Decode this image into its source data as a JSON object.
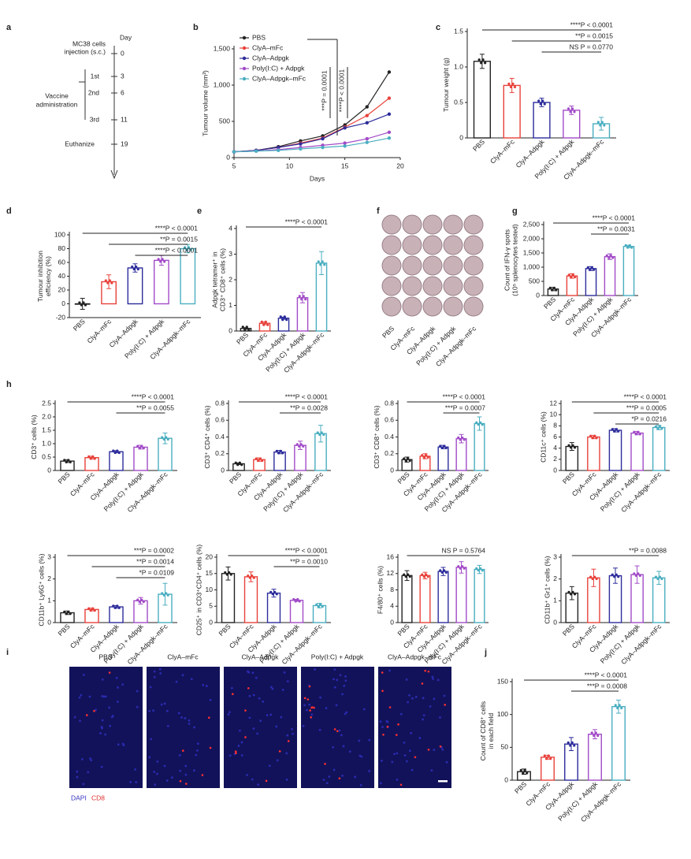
{
  "timeline": {
    "panel": "a",
    "day_label": "Day",
    "group_label": [
      "Vaccine",
      "administration"
    ],
    "events": [
      {
        "label": [
          "MC38 cells",
          "injection (s.c.)"
        ],
        "day": "0"
      },
      {
        "label": [
          "1st"
        ],
        "day": "3"
      },
      {
        "label": [
          "2nd"
        ],
        "day": "6"
      },
      {
        "label": [
          "3rd"
        ],
        "day": "11"
      },
      {
        "label": [
          "Euthanize"
        ],
        "day": "19"
      }
    ]
  },
  "wells": {
    "panel": "f",
    "categories": [
      "PBS",
      "ClyA–mFc",
      "ClyA–Adpgk",
      "Poly(I:C) + Adpgk",
      "ClyA–Adpgk–mFc"
    ]
  },
  "images": {
    "panel": "i",
    "titles": [
      "PBS",
      "ClyA–mFc",
      "ClyA–Adpgk",
      "Poly(I:C) + Adpgk",
      "ClyA–Adpgk–mFc"
    ],
    "stain_labels": [
      "DAPI",
      "CD8"
    ]
  },
  "chart_data": [
    {
      "type": "line",
      "panel": "b",
      "xlabel": "Days",
      "ylabel": [
        "Tumour volume (mm³)"
      ],
      "x": [
        5,
        7,
        9,
        11,
        13,
        15,
        17,
        19
      ],
      "xlim": [
        5,
        20
      ],
      "xticks": [
        5,
        10,
        15,
        20
      ],
      "ylim": [
        0,
        1500
      ],
      "yticks": [
        0,
        500,
        {
          "value": 1000,
          "label": "1,000"
        },
        {
          "value": 1500,
          "label": "1,500"
        }
      ],
      "annotations": [
        "***P = 0.0001",
        "****P < 0.0001"
      ],
      "series": [
        {
          "name": "PBS",
          "color": "#222222",
          "values": [
            80,
            100,
            150,
            230,
            300,
            450,
            700,
            1180
          ]
        },
        {
          "name": "ClyA–mFc",
          "color": "#e8413a",
          "values": [
            80,
            100,
            140,
            200,
            270,
            420,
            580,
            820
          ]
        },
        {
          "name": "ClyA–Adpgk",
          "color": "#2c2c9c",
          "values": [
            80,
            100,
            140,
            190,
            260,
            410,
            480,
            600
          ]
        },
        {
          "name": "Poly(I:C) + Adpgk",
          "color": "#a24bc8",
          "values": [
            80,
            90,
            110,
            140,
            170,
            200,
            260,
            350
          ]
        },
        {
          "name": "ClyA–Adpgk–mFc",
          "color": "#4aaec0",
          "values": [
            80,
            90,
            100,
            120,
            140,
            160,
            210,
            270
          ]
        }
      ]
    },
    {
      "type": "bar",
      "panel": "c",
      "ylabel": [
        "Tumour weight (g)"
      ],
      "categories": [
        "PBS",
        "ClyA–mFc",
        "ClyA–Adpgk",
        "Poly(I:C) + Adpgk",
        "ClyA–Adpgk–mFc"
      ],
      "values": [
        1.08,
        0.74,
        0.5,
        0.39,
        0.2
      ],
      "errors": [
        0.1,
        0.1,
        0.06,
        0.06,
        0.09
      ],
      "ylim": [
        0,
        1.5
      ],
      "yticks": [
        0,
        0.5,
        {
          "value": 1,
          "label": "1.0"
        },
        1.5
      ],
      "annotations": [
        "****P < 0.0001",
        "**P = 0.0015",
        "NS P = 0.0770"
      ]
    },
    {
      "type": "bar",
      "panel": "d",
      "ylabel": [
        "Tumour inhibition",
        "efficiency (%)"
      ],
      "categories": [
        "PBS",
        "ClyA–mFc",
        "ClyA–Adpgk",
        "Poly(I:C) + Adpgk",
        "ClyA–Adpgk–mFc"
      ],
      "values": [
        0,
        32,
        52,
        63,
        80
      ],
      "errors": [
        8,
        10,
        6,
        7,
        6
      ],
      "ylim": [
        -20,
        100
      ],
      "yticks": [
        -20,
        0,
        20,
        40,
        60,
        80,
        100
      ],
      "annotations": [
        "****P < 0.0001",
        "**P = 0.0015",
        "****P < 0.0001"
      ]
    },
    {
      "type": "bar",
      "panel": "e",
      "ylabel": [
        "Adpgk tetramer⁺ in",
        "CD3⁺ CD8⁺ cells (%)"
      ],
      "categories": [
        "PBS",
        "ClyA–mFc",
        "ClyA–Adpgk",
        "Poly(I:C) + Adpgk",
        "ClyA–Adpgk–mFc"
      ],
      "values": [
        0.1,
        0.3,
        0.5,
        1.3,
        2.65
      ],
      "errors": [
        0.03,
        0.05,
        0.04,
        0.2,
        0.45
      ],
      "ylim": [
        0,
        4
      ],
      "yticks": [
        0,
        1,
        2,
        3,
        4
      ],
      "annotations": [
        "****P < 0.0001"
      ]
    },
    {
      "type": "bar",
      "panel": "g",
      "ylabel": [
        "Count of IFN-γ spots",
        "(10⁵ splenocytes tested)"
      ],
      "categories": [
        "PBS",
        "ClyA–mFc",
        "ClyA–Adpgk",
        "Poly(I:C) + Adpgk",
        "ClyA–Adpgk–mFc"
      ],
      "values": [
        230,
        690,
        950,
        1370,
        1730
      ],
      "errors": [
        60,
        80,
        70,
        100,
        40
      ],
      "ylim": [
        0,
        2500
      ],
      "yticks": [
        0,
        500,
        {
          "value": 1000,
          "label": "1,000"
        },
        {
          "value": 1500,
          "label": "1,500"
        },
        {
          "value": 2000,
          "label": "2,000"
        },
        {
          "value": 2500,
          "label": "2,500"
        }
      ],
      "annotations": [
        "****P < 0.0001",
        "**P = 0.0031"
      ]
    },
    {
      "type": "bar",
      "panel": "h",
      "ylabel": [
        "CD3⁺ cells (%)"
      ],
      "categories": [
        "PBS",
        "ClyA–mFc",
        "ClyA–Adpgk",
        "Poly(I:C) + Adpgk",
        "ClyA–Adpgk–mFc"
      ],
      "values": [
        0.35,
        0.48,
        0.7,
        0.87,
        1.2
      ],
      "errors": [
        0.05,
        0.05,
        0.04,
        0.07,
        0.2
      ],
      "ylim": [
        0,
        2.5
      ],
      "yticks": [
        0,
        0.5,
        {
          "value": 1,
          "label": "1.0"
        },
        1.5,
        {
          "value": 2,
          "label": "2.0"
        },
        2.5
      ],
      "annotations": [
        "****P < 0.0001",
        "**P = 0.0055"
      ]
    },
    {
      "type": "bar",
      "ylabel": [
        "CD3⁺ CD4⁺ cells (%)"
      ],
      "categories": [
        "PBS",
        "ClyA–mFc",
        "ClyA–Adpgk",
        "Poly(I:C) + Adpgk",
        "ClyA–Adpgk–mFc"
      ],
      "values": [
        0.08,
        0.13,
        0.22,
        0.3,
        0.44
      ],
      "errors": [
        0.01,
        0.02,
        0.02,
        0.05,
        0.1
      ],
      "ylim": [
        0,
        0.8
      ],
      "yticks": [
        0,
        0.2,
        0.4,
        0.6,
        0.8
      ],
      "annotations": [
        "****P < 0.0001",
        "**P = 0.0028"
      ]
    },
    {
      "type": "bar",
      "ylabel": [
        "CD3⁺ CD8⁺ cells (%)"
      ],
      "categories": [
        "PBS",
        "ClyA–mFc",
        "ClyA–Adpgk",
        "Poly(I:C) + Adpgk",
        "ClyA–Adpgk–mFc"
      ],
      "values": [
        0.13,
        0.17,
        0.28,
        0.38,
        0.56
      ],
      "errors": [
        0.03,
        0.03,
        0.02,
        0.05,
        0.08
      ],
      "ylim": [
        0,
        0.8
      ],
      "yticks": [
        0,
        0.2,
        0.4,
        0.6,
        0.8
      ],
      "annotations": [
        "****P < 0.0001",
        "***P = 0.0007"
      ]
    },
    {
      "type": "bar",
      "ylabel": [
        "CD11c⁺ cells (%)"
      ],
      "categories": [
        "PBS",
        "ClyA–mFc",
        "ClyA–Adpgk",
        "Poly(I:C) + Adpgk",
        "ClyA–Adpgk–mFc"
      ],
      "values": [
        4.3,
        6,
        7.2,
        6.7,
        7.7
      ],
      "errors": [
        0.7,
        0.3,
        0.3,
        0.3,
        0.4
      ],
      "ylim": [
        0,
        12
      ],
      "yticks": [
        0,
        2,
        4,
        6,
        8,
        10,
        12
      ],
      "annotations": [
        "****P < 0.0001",
        "***P = 0.0005",
        "*P = 0.0216"
      ]
    },
    {
      "type": "bar",
      "ylabel": [
        "CD11b⁺ Ly6G⁺ cells (%)"
      ],
      "categories": [
        "PBS",
        "ClyA–mFc",
        "ClyA–Adpgk",
        "Poly(I:C) + Adpgk",
        "ClyA–Adpgk–mFc"
      ],
      "values": [
        0.45,
        0.6,
        0.72,
        1,
        1.3
      ],
      "errors": [
        0.08,
        0.06,
        0.06,
        0.15,
        0.5
      ],
      "ylim": [
        0,
        3
      ],
      "yticks": [
        0,
        1,
        2,
        3
      ],
      "annotations": [
        "***P = 0.0002",
        "**P = 0.0014",
        "*P = 0.0109"
      ]
    },
    {
      "type": "bar",
      "ylabel": [
        "CD25⁺ in CD3⁺CD4⁺ cells (%)"
      ],
      "categories": [
        "PBS",
        "ClyA–mFc",
        "ClyA–Adpgk",
        "Poly(I:C) + Adpgk",
        "ClyA–Adpgk–mFc"
      ],
      "values": [
        15,
        14,
        9,
        6.8,
        5.2
      ],
      "errors": [
        2,
        1.5,
        1.2,
        0.3,
        0.7
      ],
      "ylim": [
        0,
        20
      ],
      "yticks": [
        0,
        5,
        10,
        15,
        20
      ],
      "annotations": [
        "****P < 0.0001",
        "**P = 0.0010"
      ]
    },
    {
      "type": "bar",
      "ylabel": [
        "F4/80⁺ cells (%)"
      ],
      "categories": [
        "PBS",
        "ClyA–mFc",
        "ClyA–Adpgk",
        "Poly(I:C) + Adpgk",
        "ClyA–Adpgk–mFc"
      ],
      "values": [
        11.5,
        11.5,
        12.5,
        13.5,
        13
      ],
      "errors": [
        1.2,
        0.8,
        1,
        1.4,
        1
      ],
      "ylim": [
        0,
        16
      ],
      "yticks": [
        0,
        4,
        8,
        12,
        16
      ],
      "annotations": [
        "NS P = 0.5764"
      ]
    },
    {
      "type": "bar",
      "ylabel": [
        "CD11b⁺ Gr1⁺ cells (%)"
      ],
      "categories": [
        "PBS",
        "ClyA–mFc",
        "ClyA–Adpgk",
        "Poly(I:C) + Adpgk",
        "ClyA–Adpgk–mFc"
      ],
      "values": [
        1.35,
        2.05,
        2.15,
        2.2,
        2.05
      ],
      "errors": [
        0.3,
        0.4,
        0.35,
        0.4,
        0.3
      ],
      "ylim": [
        0,
        3
      ],
      "yticks": [
        0,
        1,
        2,
        3
      ],
      "annotations": [
        "**P = 0.0088"
      ]
    },
    {
      "type": "bar",
      "panel": "j",
      "ylabel": [
        "Count of CD8⁺ cells",
        "in each field"
      ],
      "categories": [
        "PBS",
        "ClyA–mFc",
        "ClyA–Adpgk",
        "Poly(I:C) + Adpgk",
        "ClyA–Adpgk–mFc"
      ],
      "values": [
        13,
        35,
        55,
        70,
        112
      ],
      "errors": [
        4,
        3,
        10,
        7,
        10
      ],
      "ylim": [
        0,
        150
      ],
      "yticks": [
        0,
        50,
        100,
        150
      ],
      "annotations": [
        "****P < 0.0001",
        "***P = 0.0008"
      ]
    }
  ]
}
